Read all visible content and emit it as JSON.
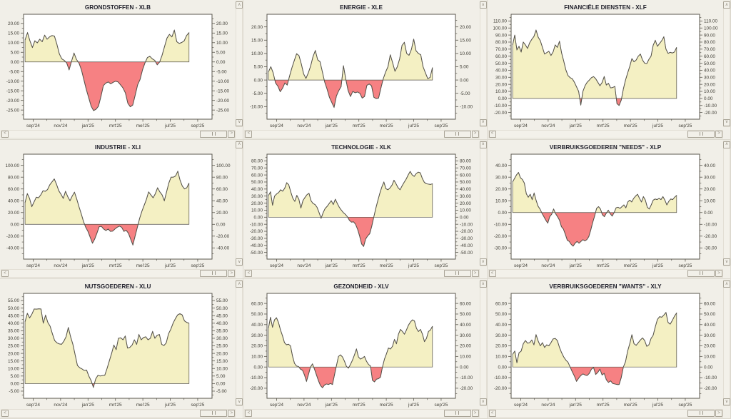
{
  "ui": {
    "scrollbar": {
      "left_arrow": "<",
      "right_arrow": ">",
      "up_arrow": "∧",
      "down_arrow": "∨"
    },
    "colors": {
      "page_bg": "#e8e5dd",
      "panel_bg": "#f1efe8",
      "plot_bg": "#ffffff",
      "axis": "#5a574e",
      "label": "#3f3d35",
      "title": "#23232e",
      "positive_fill": "#f4f0c3",
      "negative_fill": "#f68183",
      "line": "#55524a"
    }
  },
  "chart_data": [
    {
      "type": "area",
      "title": "GRONDSTOFFEN - XLB",
      "ticker": "XLB",
      "x_ticks": [
        "sep'24",
        "nov'24",
        "jan'25",
        "mrt'25",
        "mei'25",
        "jul'25",
        "sep'25"
      ],
      "ylim": [
        -25,
        20
      ],
      "ystep": 5,
      "baseline": 0,
      "values": [
        11.4,
        15.2,
        10.9,
        7.5,
        11,
        9.9,
        11.8,
        10.5,
        13.9,
        11.8,
        13,
        13.7,
        13.4,
        9.2,
        4.2,
        1.6,
        0.8,
        -0.5,
        -4.1,
        0.4,
        4.6,
        1.3,
        -0.5,
        -4,
        -9.1,
        -14.2,
        -18.6,
        -23,
        -25.3,
        -24.6,
        -23,
        -18,
        -12.3,
        -11,
        -10.4,
        -11.4,
        -10.6,
        -10,
        -10.4,
        -11.9,
        -13.5,
        -16.1,
        -21.5,
        -23.3,
        -22.4,
        -17.3,
        -11.9,
        -9.1,
        -4.1,
        -0.5,
        2.3,
        2.9,
        1.6,
        0.8,
        -1.5,
        0,
        3.5,
        8,
        12.4,
        14.3,
        13,
        16.5,
        10.5,
        9.6,
        10.1,
        10.9,
        13.7,
        15.2
      ]
    },
    {
      "type": "area",
      "title": "ENERGIE - XLE",
      "ticker": "XLE",
      "x_ticks": [
        "sep'24",
        "nov'24",
        "jan'25",
        "mrt'25",
        "mei'25",
        "jul'25",
        "sep'25"
      ],
      "ylim": [
        -10,
        20
      ],
      "ystep": 5,
      "baseline": 0,
      "values": [
        3.1,
        5,
        2.7,
        -1.1,
        -2.3,
        -4.4,
        -3.1,
        -1.1,
        -1.9,
        1.5,
        4.6,
        7.3,
        9.9,
        9.2,
        6.1,
        2.3,
        0.6,
        2.7,
        5.3,
        8.8,
        11.1,
        7.6,
        6.9,
        3.1,
        -0.8,
        -3.4,
        -6.5,
        -8.4,
        -10.3,
        -6,
        -4,
        -2.5,
        5.4,
        0.3,
        -4,
        -6.2,
        -4.3,
        -4.8,
        -4.5,
        -5,
        -6.8,
        -6.2,
        -2,
        -1.5,
        -2.2,
        -6.5,
        -7,
        -6.8,
        -3,
        0.5,
        3,
        5,
        9.5,
        6.5,
        3.3,
        5,
        8,
        13,
        14.2,
        10,
        9.3,
        11.5,
        15.4,
        11,
        10,
        9.5,
        5,
        2.7,
        0.5,
        1,
        4.7
      ]
    },
    {
      "type": "area",
      "title": "FINANCIËLE DIENSTEN - XLF",
      "ticker": "XLF",
      "x_ticks": [
        "sep'24",
        "nov'24",
        "jan'25",
        "mrt'25",
        "mei'25",
        "jul'25",
        "sep'25"
      ],
      "ylim": [
        -20,
        110
      ],
      "ystep": 10,
      "baseline": 0,
      "values": [
        76,
        90,
        69,
        74,
        66,
        80,
        76,
        71,
        79,
        84,
        88,
        97,
        87,
        82,
        72.5,
        63,
        65,
        67,
        61,
        66,
        76,
        72.5,
        81,
        64.5,
        53,
        40.5,
        32.5,
        29.5,
        28,
        23,
        16.5,
        10,
        -9.5,
        10,
        18,
        23,
        26,
        29.5,
        31,
        28,
        23,
        18,
        22.5,
        31,
        19,
        21.5,
        15,
        15.5,
        17,
        -7.5,
        -10,
        -2.5,
        13.5,
        26,
        36,
        45.5,
        56.5,
        52,
        54.5,
        60,
        63,
        54.5,
        50,
        49.5,
        55.5,
        60,
        75.5,
        82.5,
        74,
        78,
        82,
        87.5,
        70,
        64,
        65.5,
        64.5,
        66,
        72.5
      ]
    },
    {
      "type": "area",
      "title": "INDUSTRIE - XLI",
      "ticker": "XLI",
      "x_ticks": [
        "sep'24",
        "nov'24",
        "jan'25",
        "mrt'25",
        "mei'25",
        "jul'25",
        "sep'25"
      ],
      "ylim": [
        -40,
        100
      ],
      "ystep": 20,
      "baseline": 0,
      "values": [
        37,
        52,
        44,
        30,
        38,
        46,
        45,
        50,
        57,
        56,
        59,
        67,
        72,
        77,
        68,
        57,
        51,
        44,
        56,
        47,
        40,
        48,
        54.5,
        43,
        30,
        18,
        5,
        -5,
        -12,
        -22,
        -32,
        -25,
        -15,
        -4,
        -3.5,
        -8,
        -10.5,
        -8,
        -12,
        -11.5,
        -8,
        -5,
        -3,
        -5,
        -12,
        -10,
        -15,
        -25,
        -35,
        -20,
        -5,
        10,
        22,
        32,
        42,
        55,
        50,
        45,
        52,
        62,
        55,
        50,
        40,
        55,
        70,
        80,
        80,
        82,
        90,
        75,
        65,
        60,
        62,
        70
      ]
    },
    {
      "type": "area",
      "title": "TECHNOLOGIE - XLK",
      "ticker": "XLK",
      "x_ticks": [
        "sep'24",
        "nov'24",
        "jan'25",
        "mrt'25",
        "mei'25",
        "jul'25",
        "sep'25"
      ],
      "ylim": [
        -50,
        80
      ],
      "ystep": 10,
      "baseline": 0,
      "values": [
        31,
        36,
        17,
        30,
        33,
        35,
        39,
        37,
        41,
        49,
        46,
        36,
        27,
        22.5,
        31,
        25.5,
        13,
        23.5,
        28,
        32,
        34,
        23.5,
        19.5,
        18,
        14,
        6.5,
        -1.5,
        6.5,
        12.5,
        15.5,
        19.5,
        23.5,
        18,
        25.5,
        19.5,
        14,
        10,
        6.5,
        4,
        0.5,
        -4.5,
        -7,
        -6.5,
        -10,
        -17,
        -26.5,
        -38,
        -41.5,
        -31,
        -26.5,
        -23.5,
        -13,
        0,
        12.5,
        23.5,
        34,
        43,
        50,
        40.5,
        39,
        41.5,
        45.5,
        52.5,
        47.5,
        42,
        39,
        44.5,
        49.5,
        54,
        60,
        65,
        60,
        58,
        62,
        64,
        63,
        55,
        49.5,
        47.5,
        47,
        46.5,
        47.5
      ]
    },
    {
      "type": "area",
      "title": "VERBRUIKSGOEDEREN \"NEEDS\" - XLP",
      "ticker": "XLP",
      "x_ticks": [
        "sep'24",
        "nov'24",
        "jan'25",
        "mrt'25",
        "mei'25",
        "jul'25",
        "sep'25"
      ],
      "ylim": [
        -30,
        40
      ],
      "ystep": 10,
      "baseline": 0,
      "values": [
        26,
        29,
        32,
        34,
        29.5,
        28,
        25,
        16,
        13,
        15.5,
        11,
        16.5,
        10.5,
        5.5,
        3,
        -0.5,
        -3.5,
        -6.5,
        -9,
        -3.5,
        -1.5,
        3,
        -1,
        -3.5,
        -6.5,
        -12,
        -14,
        -18.5,
        -23.5,
        -24.5,
        -27,
        -28.5,
        -26,
        -24.5,
        -26,
        -24.5,
        -23,
        -24,
        -23,
        -20.5,
        -15,
        -8.5,
        -3,
        3.5,
        5,
        3,
        -2,
        -3.5,
        -0.5,
        2,
        -1,
        -3,
        0,
        4,
        4.5,
        3.5,
        5,
        6.5,
        4,
        9,
        10.5,
        9,
        12,
        14,
        15.5,
        12,
        9,
        13.5,
        10.5,
        4.5,
        3,
        6.5,
        10.5,
        11.5,
        11,
        12,
        11,
        13.5,
        10.5,
        6.5,
        9.5,
        11.5,
        11,
        13,
        14.5
      ]
    },
    {
      "type": "area",
      "title": "NUTSGOEDEREN - XLU",
      "ticker": "XLU",
      "x_ticks": [
        "sep'24",
        "nov'24",
        "jan'25",
        "mrt'25",
        "mei'25",
        "jul'25",
        "sep'25"
      ],
      "ylim": [
        -5,
        55
      ],
      "ystep": 5,
      "baseline": 0,
      "values": [
        41,
        46.5,
        43.5,
        46,
        49.4,
        49.3,
        49.5,
        49.4,
        40,
        45.3,
        40.5,
        38,
        33,
        28.5,
        27,
        26.3,
        26,
        28,
        31,
        37.2,
        31,
        26,
        19,
        12,
        10.5,
        9.7,
        8.7,
        9,
        5,
        2,
        -2.5,
        3,
        5.5,
        5,
        5.3,
        5.5,
        10,
        15,
        20,
        25.5,
        22.5,
        30,
        30.3,
        29,
        31.5,
        23.5,
        24,
        25.5,
        29,
        26,
        32.5,
        29,
        30.5,
        31,
        29,
        30,
        34.5,
        30,
        32,
        32.5,
        26,
        25.2,
        27,
        33,
        36,
        40,
        43,
        45.5,
        46.3,
        45.5,
        41.5,
        40.5,
        40
      ]
    },
    {
      "type": "area",
      "title": "GEZONDHEID - XLV",
      "ticker": "XLV",
      "x_ticks": [
        "sep'24",
        "nov'24",
        "jan'25",
        "mrt'25",
        "mei'25",
        "jul'25",
        "sep'25"
      ],
      "ylim": [
        -20,
        60
      ],
      "ystep": 10,
      "baseline": 0,
      "values": [
        37,
        47,
        37.5,
        44.5,
        46.5,
        42,
        35,
        29.5,
        23,
        21,
        21.5,
        20,
        10.5,
        3.5,
        1,
        0.5,
        -2,
        -3,
        -7.5,
        -13.5,
        -7,
        0,
        3,
        -2,
        -7.5,
        -13,
        -17.5,
        -19.5,
        -17,
        -16,
        -16.5,
        -15.5,
        -16.5,
        -7.5,
        1.5,
        10,
        11.5,
        9.5,
        5.5,
        0.5,
        -1,
        2.5,
        6.5,
        11.5,
        17,
        9.5,
        7.5,
        8.5,
        10,
        5.5,
        2.5,
        1,
        -12.5,
        -14,
        -11.5,
        -11,
        -9.5,
        0,
        7.5,
        12.5,
        18,
        17,
        19.5,
        26,
        22,
        31,
        35.5,
        33.5,
        31,
        35,
        39.5,
        42.5,
        44.5,
        43.5,
        36.5,
        33.5,
        35.5,
        31,
        24,
        27,
        33.5,
        35,
        38.5
      ]
    },
    {
      "type": "area",
      "title": "VERBRUIKSGOEDEREN \"WANTS\" - XLY",
      "ticker": "XLY",
      "x_ticks": [
        "sep'24",
        "nov'24",
        "jan'25",
        "mrt'25",
        "mei'25",
        "jul'25",
        "sep'25"
      ],
      "ylim": [
        -20,
        60
      ],
      "ystep": 10,
      "baseline": 0,
      "values": [
        12,
        15,
        4,
        13.5,
        15,
        22,
        25,
        22.5,
        23,
        25.5,
        21,
        30.5,
        24.5,
        20,
        23,
        18.5,
        21,
        20,
        23,
        26.5,
        27,
        25,
        18.5,
        13.5,
        9.5,
        6.5,
        4.5,
        0,
        -4.5,
        -8.5,
        -13.5,
        -10.5,
        -8,
        -6.5,
        -7.5,
        -8,
        -6,
        -2,
        -0.5,
        -7,
        -5,
        -2,
        -7.5,
        -6,
        -12,
        -14.5,
        -13,
        -15.5,
        -16,
        -16.5,
        -16.5,
        -10,
        0,
        5,
        15,
        22,
        30.5,
        22,
        20.5,
        23,
        25.5,
        27.5,
        25,
        19.5,
        21,
        27,
        30,
        38,
        45,
        47.5,
        47,
        49,
        51.5,
        42,
        40.5,
        44,
        48,
        51
      ]
    }
  ]
}
